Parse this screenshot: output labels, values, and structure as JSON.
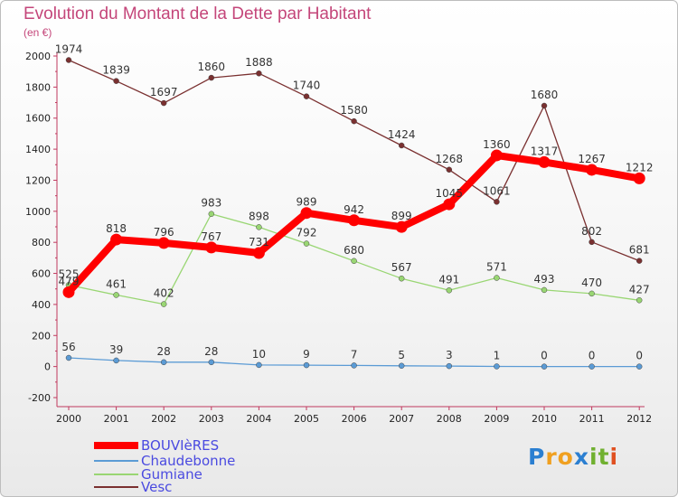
{
  "chart_data": {
    "type": "line",
    "title": "Evolution du Montant de la Dette par Habitant",
    "subtitle": "(en €)",
    "x": [
      "2000",
      "2001",
      "2002",
      "2003",
      "2004",
      "2005",
      "2006",
      "2007",
      "2008",
      "2009",
      "2010",
      "2011",
      "2012"
    ],
    "ylim": [
      -200,
      2000
    ],
    "yticks": [
      -200,
      0,
      200,
      400,
      600,
      800,
      1000,
      1200,
      1400,
      1600,
      1800,
      2000
    ],
    "grid": false,
    "legend_position": "bottom-left",
    "series": [
      {
        "name": "BOUVIèRES",
        "color": "#ff0000",
        "emphasis": true,
        "values": [
          479,
          818,
          796,
          767,
          731,
          989,
          942,
          899,
          1045,
          1360,
          1317,
          1267,
          1212
        ]
      },
      {
        "name": "Chaudebonne",
        "color": "#5b9bd5",
        "values": [
          56,
          39,
          28,
          28,
          10,
          9,
          7,
          5,
          3,
          1,
          0,
          0,
          0
        ]
      },
      {
        "name": "Gumiane",
        "color": "#99d673",
        "values": [
          525,
          461,
          402,
          983,
          898,
          792,
          680,
          567,
          491,
          571,
          493,
          470,
          427
        ]
      },
      {
        "name": "Vesc",
        "color": "#7a3030",
        "values": [
          1974,
          1839,
          1697,
          1860,
          1888,
          1740,
          1580,
          1424,
          1268,
          1061,
          1680,
          802,
          681
        ]
      }
    ]
  },
  "logo": {
    "letters": [
      "P",
      "r",
      "o",
      "x",
      "i",
      "t",
      "i"
    ],
    "colors": [
      "#2b7fd1",
      "#f0a020",
      "#f0a020",
      "#2b7fd1",
      "#70b030",
      "#70b030",
      "#e05020"
    ]
  }
}
